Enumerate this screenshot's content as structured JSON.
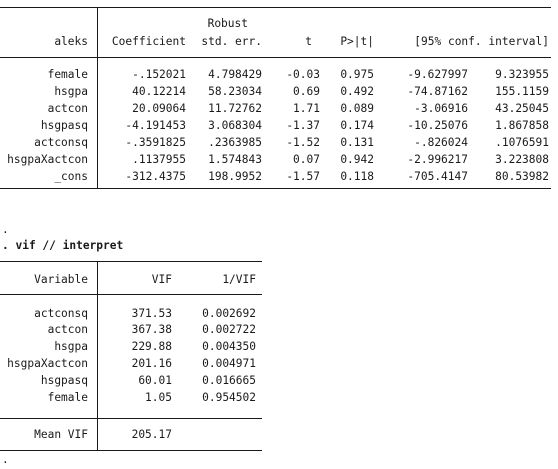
{
  "regression": {
    "dep_var": "aleks",
    "header_robust": "Robust",
    "headers": [
      "Coefficient",
      "std. err.",
      "t",
      "P>|t|",
      "[95% conf. interval]"
    ],
    "rows": [
      {
        "name": "female",
        "coef": "-.152021",
        "se": "4.798429",
        "t": "-0.03",
        "p": "0.975",
        "lo": "-9.627997",
        "hi": "9.323955"
      },
      {
        "name": "hsgpa",
        "coef": "40.12214",
        "se": "58.23034",
        "t": "0.69",
        "p": "0.492",
        "lo": "-74.87162",
        "hi": "155.1159"
      },
      {
        "name": "actcon",
        "coef": "20.09064",
        "se": "11.72762",
        "t": "1.71",
        "p": "0.089",
        "lo": "-3.06916",
        "hi": "43.25045"
      },
      {
        "name": "hsgpasq",
        "coef": "-4.191453",
        "se": "3.068304",
        "t": "-1.37",
        "p": "0.174",
        "lo": "-10.25076",
        "hi": "1.867858"
      },
      {
        "name": "actconsq",
        "coef": "-.3591825",
        "se": ".2363985",
        "t": "-1.52",
        "p": "0.131",
        "lo": "-.826024",
        "hi": ".1076591"
      },
      {
        "name": "hsgpaXactcon",
        "coef": ".1137955",
        "se": "1.574843",
        "t": "0.07",
        "p": "0.942",
        "lo": "-2.996217",
        "hi": "3.223808"
      },
      {
        "name": "_cons",
        "coef": "-312.4375",
        "se": "198.9952",
        "t": "-1.57",
        "p": "0.118",
        "lo": "-705.4147",
        "hi": "80.53982"
      }
    ]
  },
  "console": {
    "dot_line": ".",
    "command": ". vif // interpret",
    "trailing_dot": "."
  },
  "vif_table": {
    "headers": [
      "Variable",
      "VIF",
      "1/VIF"
    ],
    "rows": [
      {
        "name": "actconsq",
        "vif": "371.53",
        "inv": "0.002692"
      },
      {
        "name": "actcon",
        "vif": "367.38",
        "inv": "0.002722"
      },
      {
        "name": "hsgpa",
        "vif": "229.88",
        "inv": "0.004350"
      },
      {
        "name": "hsgpaXactcon",
        "vif": "201.16",
        "inv": "0.004971"
      },
      {
        "name": "hsgpasq",
        "vif": "60.01",
        "inv": "0.016665"
      },
      {
        "name": "female",
        "vif": "1.05",
        "inv": "0.954502"
      }
    ],
    "mean_label": "Mean VIF",
    "mean_value": "205.17"
  }
}
